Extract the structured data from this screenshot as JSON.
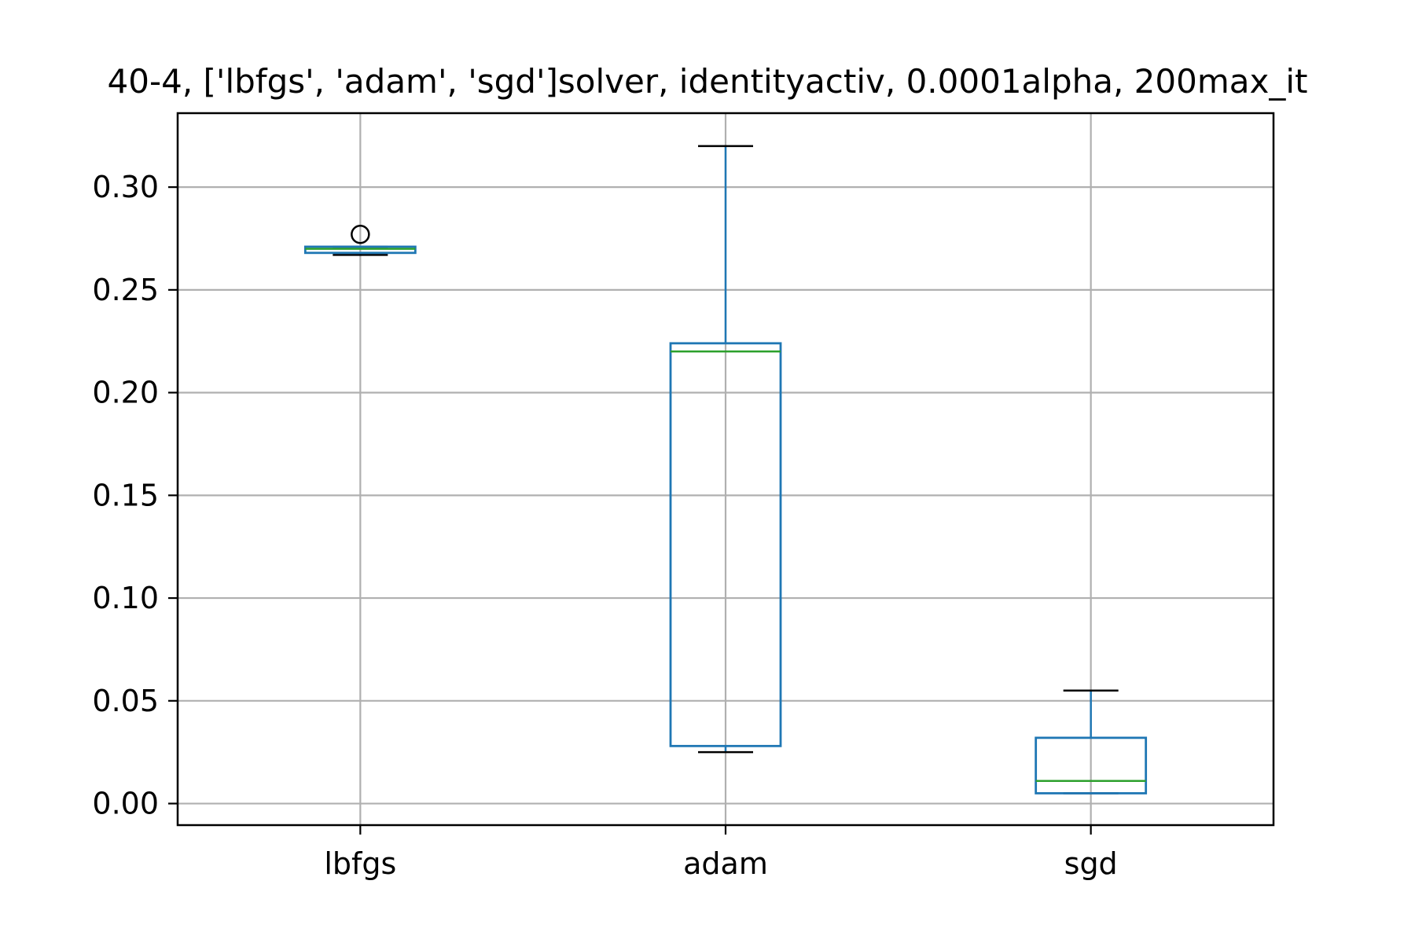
{
  "chart_data": {
    "type": "box",
    "title": "40-4, ['lbfgs', 'adam', 'sgd']solver, identityactiv, 0.0001alpha, 200max_it",
    "xlabel": "",
    "ylabel": "",
    "categories": [
      "lbfgs",
      "adam",
      "sgd"
    ],
    "boxes": [
      {
        "category": "lbfgs",
        "whisker_low": 0.267,
        "q1": 0.268,
        "median": 0.27,
        "q3": 0.271,
        "whisker_high": 0.271,
        "outliers": [
          0.277
        ]
      },
      {
        "category": "adam",
        "whisker_low": 0.025,
        "q1": 0.028,
        "median": 0.22,
        "q3": 0.224,
        "whisker_high": 0.32,
        "outliers": []
      },
      {
        "category": "sgd",
        "whisker_low": 0.005,
        "q1": 0.005,
        "median": 0.011,
        "q3": 0.032,
        "whisker_high": 0.055,
        "outliers": []
      }
    ],
    "ylim": [
      -0.0105,
      0.336
    ],
    "yticks": [
      0.0,
      0.05,
      0.1,
      0.15,
      0.2,
      0.25,
      0.3
    ],
    "ytick_labels": [
      "0.00",
      "0.05",
      "0.10",
      "0.15",
      "0.20",
      "0.25",
      "0.30"
    ],
    "grid": true,
    "colors": {
      "box": "#1f77b4",
      "median": "#2ca02c",
      "whisker_cap": "#000000",
      "grid": "#b0b0b0",
      "axes": "#000000"
    }
  }
}
